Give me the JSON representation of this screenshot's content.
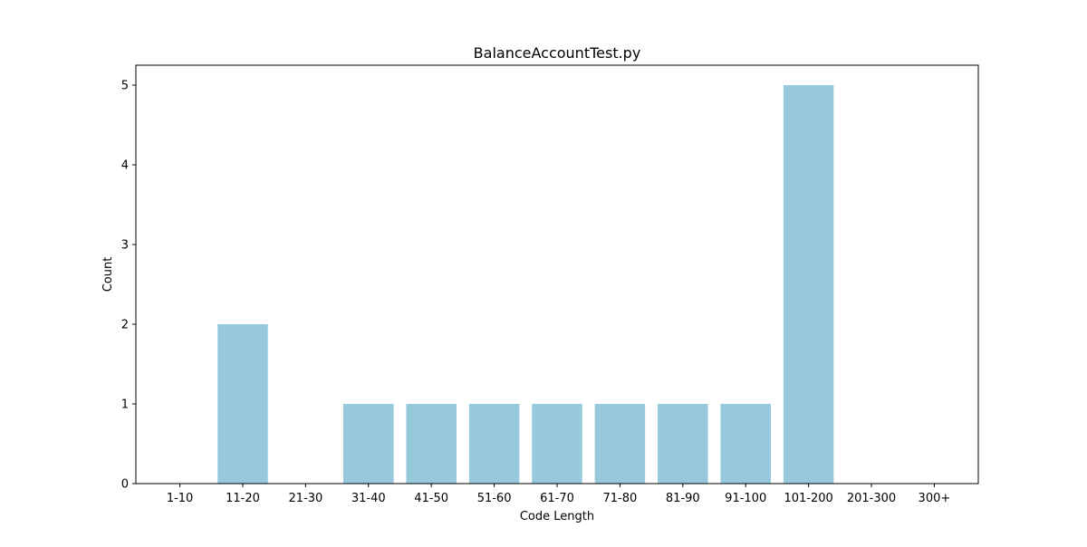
{
  "chart_data": {
    "type": "bar",
    "title": "BalanceAccountTest.py",
    "xlabel": "Code Length",
    "ylabel": "Count",
    "categories": [
      "1-10",
      "11-20",
      "21-30",
      "31-40",
      "41-50",
      "51-60",
      "61-70",
      "71-80",
      "81-90",
      "91-100",
      "101-200",
      "201-300",
      "300+"
    ],
    "values": [
      0,
      2,
      0,
      1,
      1,
      1,
      1,
      1,
      1,
      1,
      5,
      0,
      0
    ],
    "ylim": [
      0,
      5.25
    ],
    "yticks": [
      0,
      1,
      2,
      3,
      4,
      5
    ],
    "grid": false,
    "legend": "none",
    "bar_color": "#96c9dc"
  }
}
